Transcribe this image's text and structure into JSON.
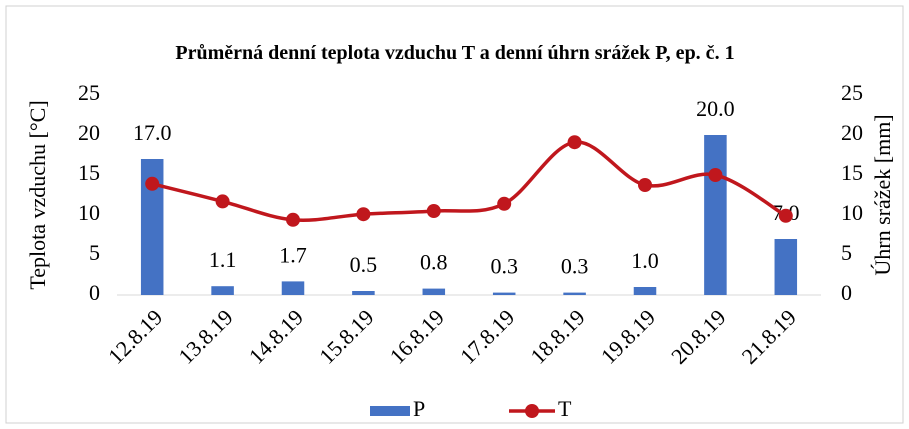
{
  "chart_data": {
    "type": "bar-line",
    "title": "Průměrná denní teplota vzduchu T a denní úhrn srážek P, ep. č. 1",
    "y_label": "Teplota vzduchu [°C]",
    "y2_label": "Úhrn srážek [mm]",
    "categories": [
      "12.8.19",
      "13.8.19",
      "14.8.19",
      "15.8.19",
      "16.8.19",
      "17.8.19",
      "18.8.19",
      "19.8.19",
      "20.8.19",
      "21.8.19"
    ],
    "series": [
      {
        "name": "P",
        "type": "bar",
        "axis": "y2",
        "color": "#4472c4",
        "values": [
          17.0,
          1.1,
          1.7,
          0.5,
          0.8,
          0.3,
          0.3,
          1.0,
          20.0,
          7.0
        ],
        "value_labels": [
          "17.0",
          "1.1",
          "1.7",
          "0.5",
          "0.8",
          "0.3",
          "0.3",
          "1.0",
          "20.0",
          "7.0"
        ]
      },
      {
        "name": "T",
        "type": "line",
        "axis": "y",
        "color": "#c0171d",
        "smooth": true,
        "values": [
          13.9,
          11.7,
          9.4,
          10.1,
          10.5,
          11.4,
          19.1,
          13.75,
          15.0,
          9.9
        ]
      }
    ],
    "ylim": [
      0,
      25
    ],
    "yticks": [
      0,
      5,
      10,
      15,
      20,
      25
    ],
    "y2lim": [
      0,
      25
    ],
    "y2ticks": [
      0,
      5,
      10,
      15,
      20,
      25
    ],
    "grid": false,
    "legend": "bottom"
  }
}
